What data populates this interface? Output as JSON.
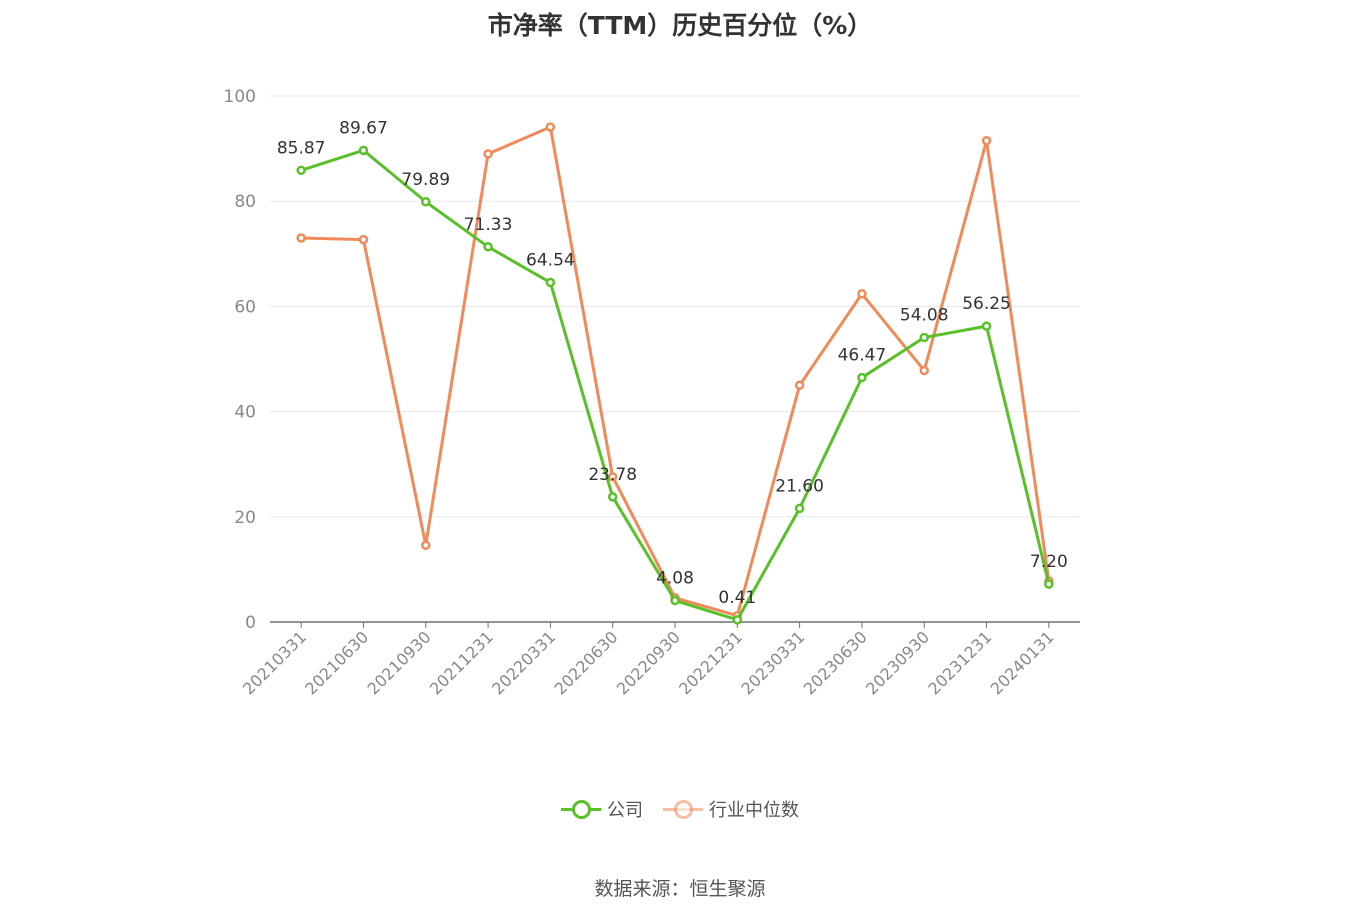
{
  "title": "市净率（TTM）历史百分位（%）",
  "source_label": "数据来源：恒生聚源",
  "colors": {
    "company": "#5ac02a",
    "industry": "#f08a5a",
    "grid": "#e6e8f0",
    "axis": "#6e7079"
  },
  "legend": [
    {
      "name": "公司",
      "color": "#5ac02a"
    },
    {
      "name": "行业中位数",
      "color": "#f08a5a"
    }
  ],
  "chart_data": {
    "type": "line",
    "title": "市净率（TTM）历史百分位（%）",
    "categories": [
      "20210331",
      "20210630",
      "20210930",
      "20211231",
      "20220331",
      "20220630",
      "20220930",
      "20221231",
      "20230331",
      "20230630",
      "20230930",
      "20231231",
      "20240131"
    ],
    "ylim": [
      0,
      100
    ],
    "yticks": [
      0,
      20,
      40,
      60,
      80,
      100
    ],
    "grid": true,
    "legend_position": "bottom",
    "series": [
      {
        "name": "公司",
        "color": "#5ac02a",
        "show_labels": true,
        "values": [
          85.87,
          89.67,
          79.89,
          71.33,
          64.54,
          23.78,
          4.08,
          0.41,
          21.6,
          46.47,
          54.08,
          56.25,
          7.2
        ],
        "labels": [
          "85.87",
          "89.67",
          "79.89",
          "71.33",
          "64.54",
          "23.78",
          "4.08",
          "0.41",
          "21.60",
          "46.47",
          "54.08",
          "56.25",
          "7.20"
        ]
      },
      {
        "name": "行业中位数",
        "color": "#f08a5a",
        "show_labels": false,
        "values": [
          73.0,
          72.7,
          14.6,
          89.0,
          94.1,
          27.6,
          4.6,
          1.2,
          45.0,
          62.4,
          47.8,
          91.5,
          7.8
        ]
      }
    ]
  }
}
